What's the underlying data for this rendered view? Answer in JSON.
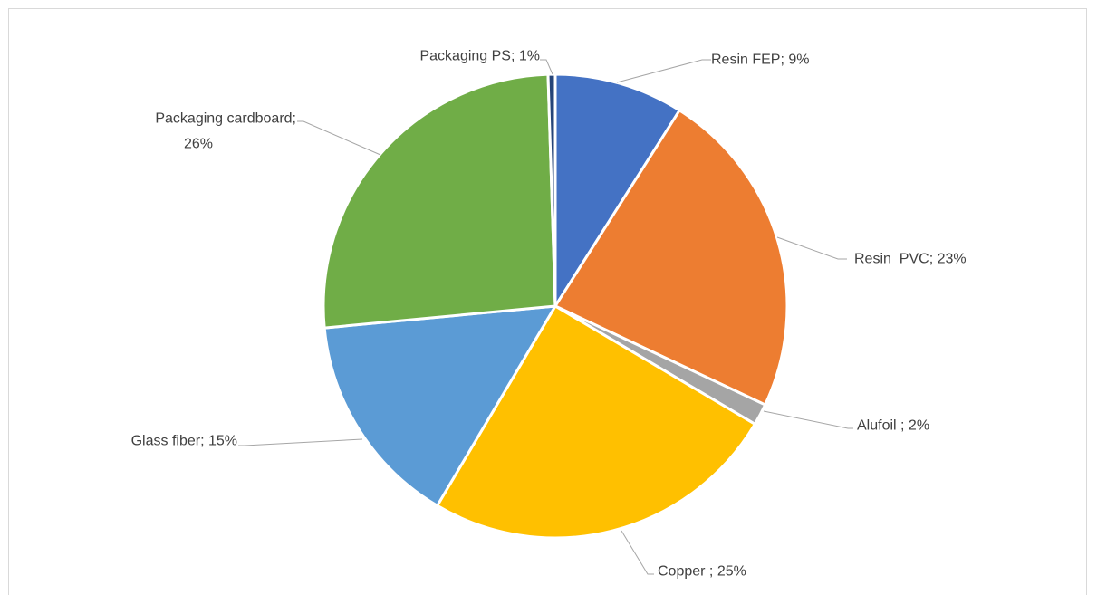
{
  "chart_data": {
    "type": "pie",
    "title": "",
    "slices": [
      {
        "name": "Resin FEP",
        "value": 9,
        "label": "Resin FEP; 9%",
        "color": "#4472c4"
      },
      {
        "name": "Resin  PVC",
        "value": 23,
        "label": "Resin  PVC; 23%",
        "color": "#ed7d31"
      },
      {
        "name": "Alufoil ",
        "value": 1.5,
        "label": "Alufoil ; 2%",
        "color": "#a5a5a5"
      },
      {
        "name": "Copper ",
        "value": 25,
        "label": "Copper ; 25%",
        "color": "#ffc000"
      },
      {
        "name": "Glass fiber",
        "value": 15,
        "label": "Glass fiber; 15%",
        "color": "#5b9bd5"
      },
      {
        "name": "Packaging cardboard",
        "value": 26,
        "label_lines": [
          "Packaging cardboard;",
          "26%"
        ],
        "color": "#70ad47"
      },
      {
        "name": "Packaging PS",
        "value": 0.5,
        "label": "Packaging PS; 1%",
        "color": "#264478"
      }
    ],
    "start_angle": "12 o'clock",
    "direction": "clockwise",
    "legend": "none",
    "data_labels": "category name and percentage, with leader lines"
  }
}
